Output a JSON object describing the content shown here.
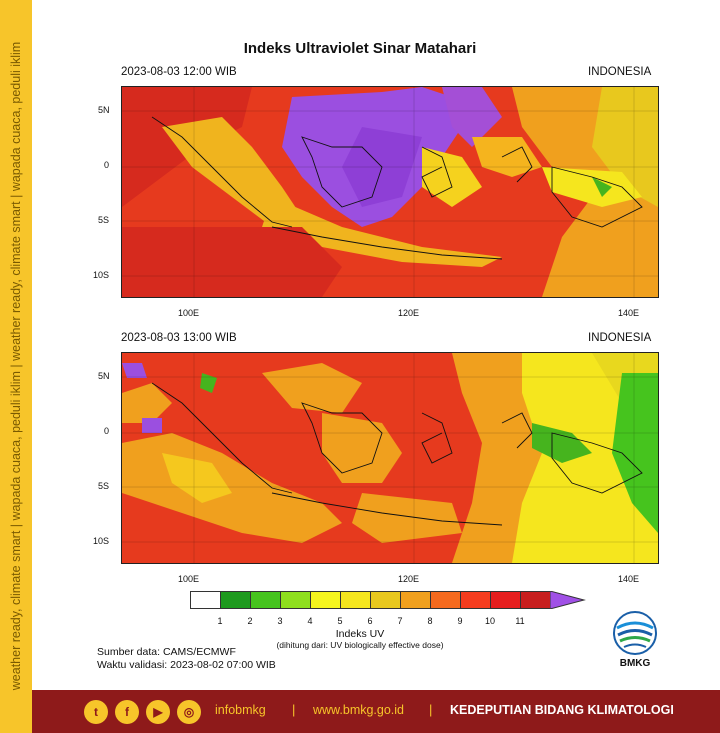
{
  "side_banner": "weather ready, climate smart | wapada cuaca, peduli iklim | weather ready, climate smart | wapada cuaca, peduli iklim",
  "title": "Indeks Ultraviolet Sinar Matahari",
  "panels": [
    {
      "datetime": "2023-08-03  12:00 WIB",
      "region": "INDONESIA"
    },
    {
      "datetime": "2023-08-03  13:00 WIB",
      "region": "INDONESIA"
    }
  ],
  "axes": {
    "lat_ticks": [
      "5N",
      "0",
      "5S",
      "10S"
    ],
    "lon_ticks": [
      "100E",
      "120E",
      "140E"
    ]
  },
  "legend": {
    "title": "Indeks UV",
    "subtitle": "(dihitung dari: UV biologically effective dose)",
    "ticks": [
      "1",
      "2",
      "3",
      "4",
      "5",
      "6",
      "7",
      "8",
      "9",
      "10",
      "11"
    ],
    "colors": [
      "#ffffff",
      "#1e9a1e",
      "#46c41e",
      "#8fe01e",
      "#f5f51e",
      "#f5e61e",
      "#e8c81e",
      "#f0a01e",
      "#f56a1e",
      "#f53c1e",
      "#e61e1e",
      "#c81e1e",
      "#a050e6"
    ]
  },
  "source": "Sumber data: CAMS/ECMWF",
  "validation": "Waktu validasi: 2023-08-02 07:00 WIB",
  "logo_text": "BMKG",
  "footer": {
    "icons": [
      "twitter-icon",
      "facebook-icon",
      "youtube-icon",
      "instagram-icon"
    ],
    "handle": "infobmkg",
    "website": "www.bmkg.go.id",
    "department": "KEDEPUTIAN BIDANG KLIMATOLOGI"
  }
}
